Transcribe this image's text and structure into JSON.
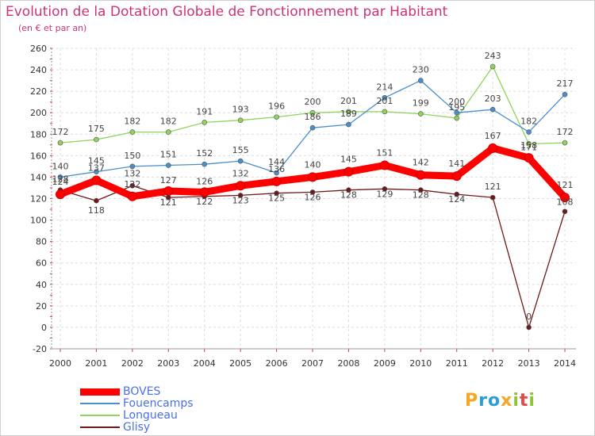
{
  "header": {
    "title": "Evolution de la Dotation Globale de Fonctionnement par Habitant",
    "subtitle": "(en € et par an)"
  },
  "logo": {
    "text": "Proxiti"
  },
  "chart_data": {
    "type": "line",
    "categories": [
      "2000",
      "2001",
      "2002",
      "2003",
      "2004",
      "2005",
      "2006",
      "2007",
      "2008",
      "2009",
      "2010",
      "2011",
      "2012",
      "2013",
      "2014"
    ],
    "ylim": [
      -20,
      260
    ],
    "yticks": [
      -20,
      0,
      20,
      40,
      60,
      80,
      100,
      120,
      140,
      160,
      180,
      200,
      220,
      240,
      260
    ],
    "grid": true,
    "legend": "bottom-left",
    "series": [
      {
        "name": "BOVES",
        "color": "#ff0000",
        "values": [
          124,
          137,
          122,
          127,
          126,
          132,
          136,
          140,
          145,
          151,
          142,
          141,
          167,
          158,
          121
        ]
      },
      {
        "name": "Fouencamps",
        "color": "#4a8fcc",
        "values": [
          140,
          145,
          150,
          151,
          152,
          155,
          144,
          186,
          189,
          214,
          230,
          200,
          203,
          182,
          217
        ]
      },
      {
        "name": "Longueau",
        "color": "#8fd45a",
        "values": [
          172,
          175,
          182,
          182,
          191,
          193,
          196,
          200,
          201,
          201,
          199,
          195,
          243,
          171,
          172
        ]
      },
      {
        "name": "Glisy",
        "color": "#6e1a1a",
        "values": [
          128,
          118,
          132,
          121,
          122,
          123,
          125,
          126,
          128,
          129,
          128,
          124,
          121,
          0,
          108
        ]
      }
    ]
  }
}
